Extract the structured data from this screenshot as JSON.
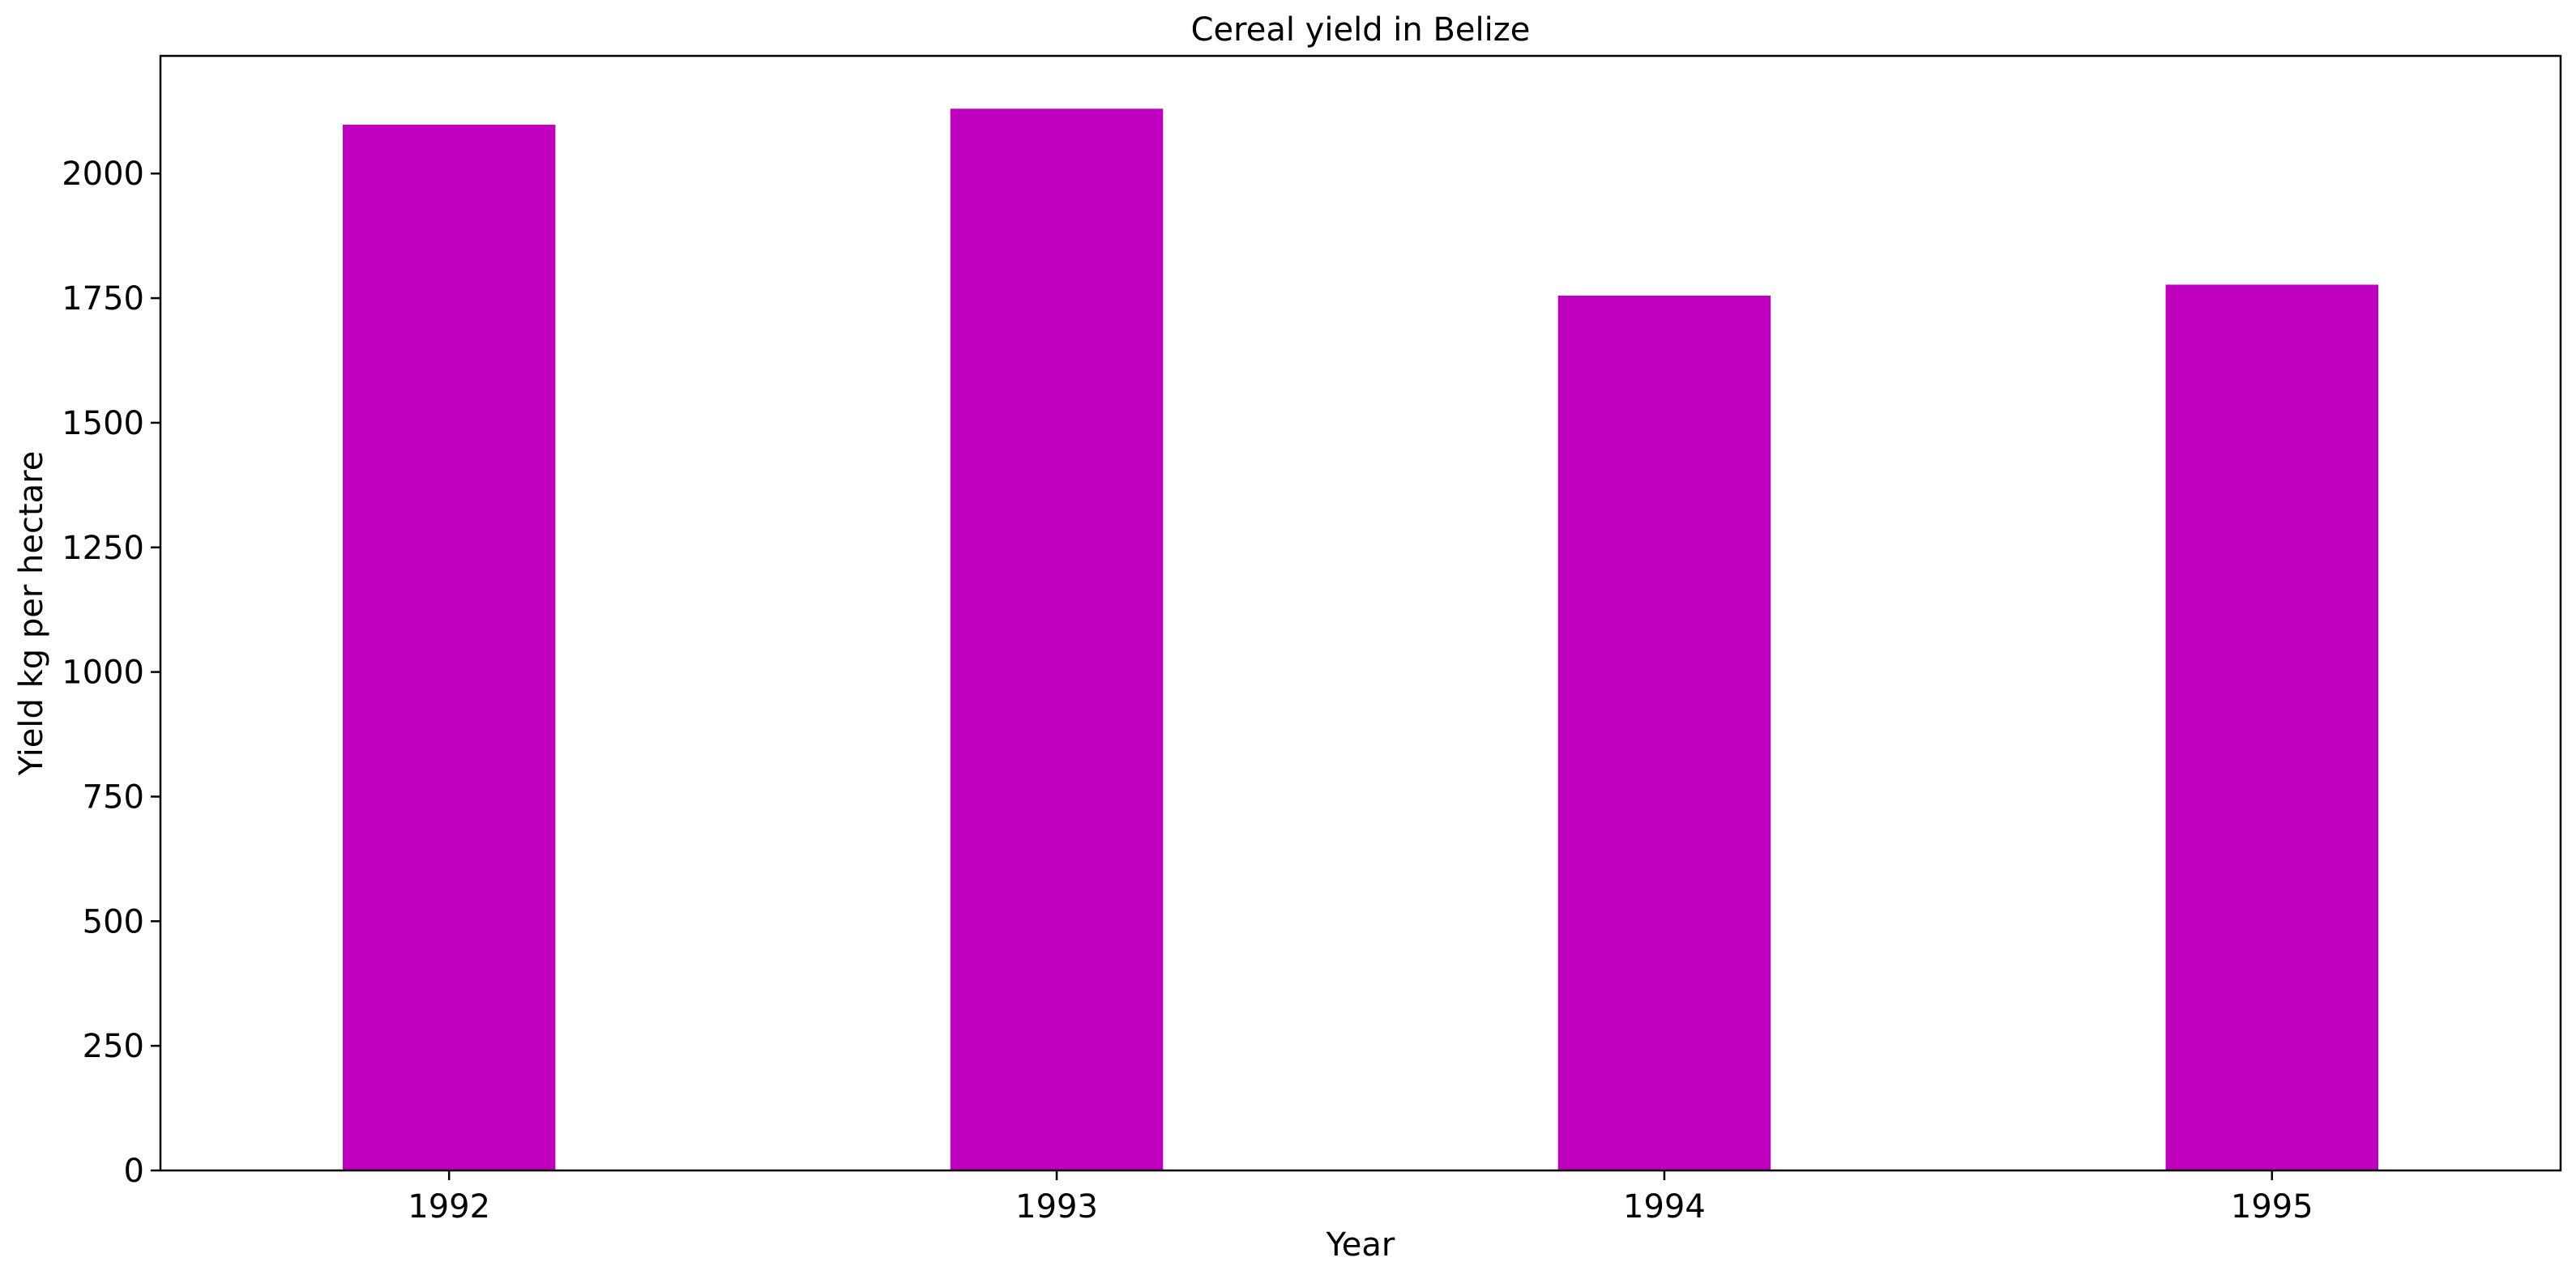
{
  "chart_data": {
    "type": "bar",
    "title": "Cereal yield in Belize",
    "xlabel": "Year",
    "ylabel": "Yield kg per hectare",
    "categories": [
      "1992",
      "1993",
      "1994",
      "1995"
    ],
    "values": [
      2098,
      2130,
      1755,
      1777
    ],
    "ylim": [
      0,
      2236
    ],
    "yticks": [
      0,
      250,
      500,
      750,
      1000,
      1250,
      1500,
      1750,
      2000
    ],
    "grid": false,
    "legend": "none",
    "bar_color": "#bf00bf"
  }
}
